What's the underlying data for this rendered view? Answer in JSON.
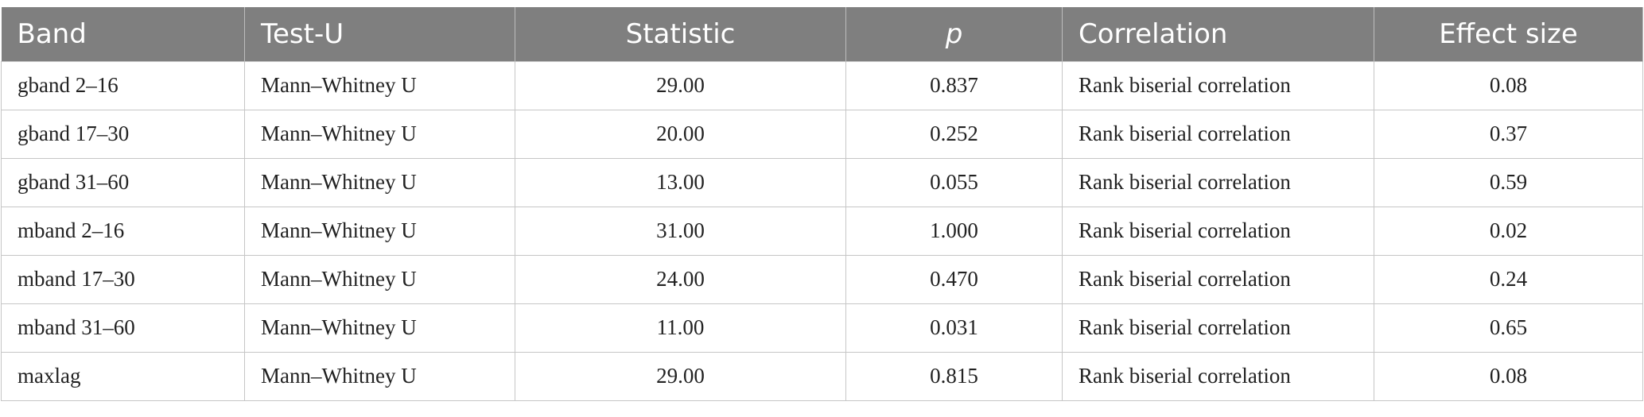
{
  "table": {
    "columns": [
      "Band",
      "Test-U",
      "Statistic",
      "p",
      "Correlation",
      "Effect size"
    ],
    "rows": [
      [
        "gband 2–16",
        "Mann–Whitney U",
        "29.00",
        "0.837",
        "Rank biserial correlation",
        "0.08"
      ],
      [
        "gband 17–30",
        "Mann–Whitney U",
        "20.00",
        "0.252",
        "Rank biserial correlation",
        "0.37"
      ],
      [
        "gband 31–60",
        "Mann–Whitney U",
        "13.00",
        "0.055",
        "Rank biserial correlation",
        "0.59"
      ],
      [
        "mband 2–16",
        "Mann–Whitney U",
        "31.00",
        "1.000",
        "Rank biserial correlation",
        "0.02"
      ],
      [
        "mband 17–30",
        "Mann–Whitney U",
        "24.00",
        "0.470",
        "Rank biserial correlation",
        "0.24"
      ],
      [
        "mband 31–60",
        "Mann–Whitney U",
        "11.00",
        "0.031",
        "Rank biserial correlation",
        "0.65"
      ],
      [
        "maxlag",
        "Mann–Whitney U",
        "29.00",
        "0.815",
        "Rank biserial correlation",
        "0.08"
      ]
    ]
  }
}
